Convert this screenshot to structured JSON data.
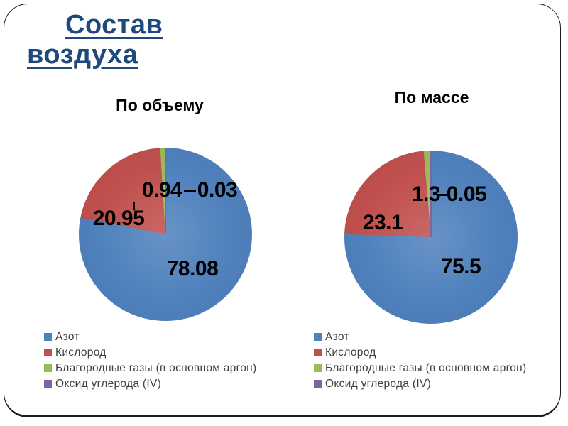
{
  "slide": {
    "title": {
      "line1": "Состав",
      "line2": "воздуха"
    },
    "title_color": "#1F497D"
  },
  "chart_data": [
    {
      "type": "pie",
      "title": "По объему",
      "labels": [
        "Азот",
        "Кислород",
        "Благородные газы (в основном аргон)",
        "Оксид углерода (IV)"
      ],
      "values": [
        78.08,
        20.95,
        0.94,
        0.03
      ],
      "data_labels": [
        "78.08",
        "20.95",
        "0.94",
        "0.03"
      ],
      "colors": [
        "#4F81BD",
        "#C0504D",
        "#9BBB59",
        "#8064A2"
      ],
      "unit": "percent",
      "start_angle_deg": 0,
      "direction": "clockwise",
      "legend_position": "bottom-left"
    },
    {
      "type": "pie",
      "title": "По массе",
      "labels": [
        "Азот",
        "Кислород",
        "Благородные газы (в основном аргон)",
        "Оксид углерода (IV)"
      ],
      "values": [
        75.5,
        23.1,
        1.3,
        0.05
      ],
      "data_labels": [
        "75.5",
        "23.1",
        "1.3",
        "0.05"
      ],
      "colors": [
        "#4F81BD",
        "#C0504D",
        "#9BBB59",
        "#8064A2"
      ],
      "unit": "percent",
      "start_angle_deg": 0,
      "direction": "clockwise",
      "legend_position": "bottom-left"
    }
  ]
}
